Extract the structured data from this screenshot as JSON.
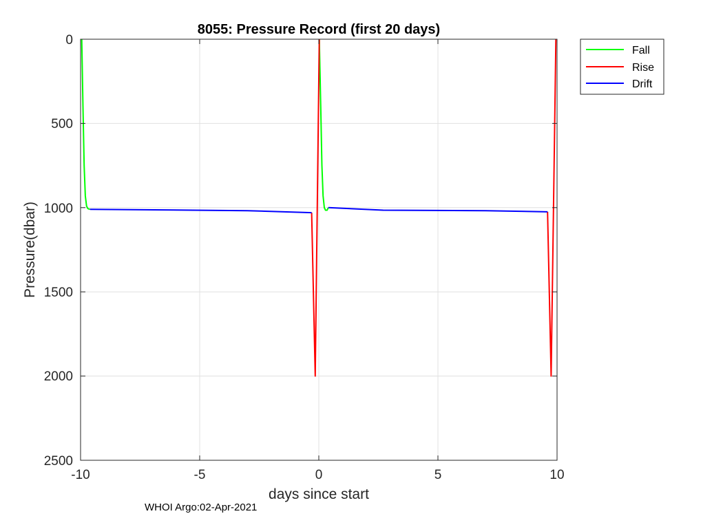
{
  "chart_data": {
    "type": "line",
    "title": "8055: Pressure Record (first 20 days)",
    "xlabel": "days since start",
    "ylabel": "Pressure(dbar)",
    "xlim": [
      -10,
      10
    ],
    "ylim": [
      0,
      2500
    ],
    "y_reversed": true,
    "grid": true,
    "xticks": [
      -10,
      -5,
      0,
      5,
      10
    ],
    "xtick_labels": [
      "-10",
      "-5",
      "0",
      "5",
      "10"
    ],
    "yticks": [
      0,
      500,
      1000,
      1500,
      2000,
      2500
    ],
    "ytick_labels": [
      "0",
      "500",
      "1000",
      "1500",
      "2000",
      "2500"
    ],
    "legend_position": "outside-top-right",
    "footer": "WHOI Argo:02-Apr-2021",
    "series": [
      {
        "name": "Fall",
        "color": "#00ff00",
        "segments": [
          [
            [
              -9.95,
              0
            ],
            [
              -9.9,
              400
            ],
            [
              -9.85,
              750
            ],
            [
              -9.8,
              930
            ],
            [
              -9.75,
              990
            ],
            [
              -9.7,
              1005
            ],
            [
              -9.65,
              1008
            ],
            [
              -9.6,
              1010
            ]
          ],
          [
            [
              0.02,
              0
            ],
            [
              0.08,
              400
            ],
            [
              0.13,
              750
            ],
            [
              0.18,
              930
            ],
            [
              0.23,
              1000
            ],
            [
              0.28,
              1015
            ],
            [
              0.35,
              1015
            ],
            [
              0.4,
              1000
            ]
          ]
        ]
      },
      {
        "name": "Rise",
        "color": "#ff0000",
        "segments": [
          [
            [
              -0.3,
              1030
            ],
            [
              -0.15,
              2000
            ],
            [
              0.02,
              0
            ]
          ],
          [
            [
              9.6,
              1025
            ],
            [
              9.75,
              2000
            ],
            [
              9.95,
              0
            ]
          ]
        ]
      },
      {
        "name": "Drift",
        "color": "#0000ff",
        "segments": [
          [
            [
              -9.6,
              1010
            ],
            [
              -3.0,
              1018
            ],
            [
              -0.3,
              1030
            ]
          ],
          [
            [
              0.4,
              1000
            ],
            [
              2.7,
              1015
            ],
            [
              7.0,
              1018
            ],
            [
              9.6,
              1025
            ]
          ]
        ]
      }
    ]
  }
}
